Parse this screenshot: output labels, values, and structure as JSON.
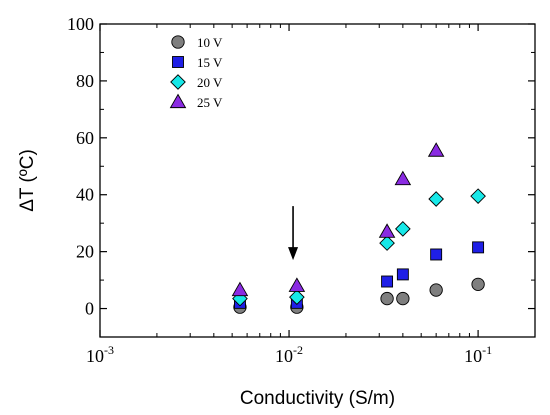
{
  "chart_data": {
    "type": "scatter",
    "xlabel": "Conductivity (S/m)",
    "ylabel": "ΔT (ºC)",
    "xscale": "log",
    "xlim": [
      0.001,
      0.2
    ],
    "ylim": [
      -10,
      100
    ],
    "x_ticks": [
      {
        "value": 0.001,
        "base": "10",
        "exp": "-3"
      },
      {
        "value": 0.01,
        "base": "10",
        "exp": "-2"
      },
      {
        "value": 0.1,
        "base": "10",
        "exp": "-1"
      }
    ],
    "y_ticks": [
      0,
      20,
      40,
      60,
      80,
      100
    ],
    "grid": false,
    "legend": "top-left",
    "series": [
      {
        "name": "10 V",
        "marker": "circle",
        "color": "#7f7f7f",
        "x": [
          0.0055,
          0.011,
          0.033,
          0.04,
          0.06,
          0.1
        ],
        "y": [
          0.5,
          0.5,
          3.5,
          3.5,
          6.5,
          8.5
        ]
      },
      {
        "name": "15 V",
        "marker": "square",
        "color": "#1f1fe6",
        "x": [
          0.0055,
          0.011,
          0.033,
          0.04,
          0.06,
          0.1
        ],
        "y": [
          2,
          2,
          9.5,
          12,
          19,
          21.5
        ]
      },
      {
        "name": "20 V",
        "marker": "diamond",
        "color": "#17e8e8",
        "x": [
          0.0055,
          0.011,
          0.033,
          0.04,
          0.06,
          0.1
        ],
        "y": [
          3.5,
          4,
          23,
          28,
          38.5,
          39.5
        ]
      },
      {
        "name": "25 V",
        "marker": "triangle",
        "color": "#8a2be2",
        "x": [
          0.0055,
          0.011,
          0.033,
          0.04,
          0.06
        ],
        "y": [
          6.5,
          8,
          27,
          45.5,
          55.5
        ]
      }
    ],
    "annotations": [
      {
        "type": "arrow",
        "x": 0.0105,
        "y_from": 36,
        "y_to": 17
      }
    ]
  }
}
